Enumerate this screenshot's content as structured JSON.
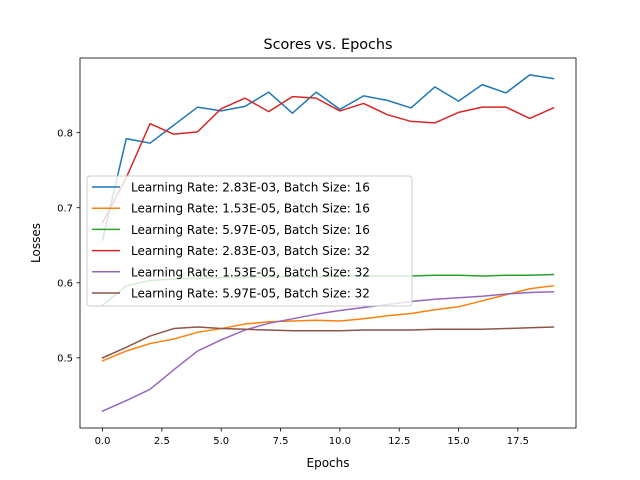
{
  "chart_data": {
    "type": "line",
    "title": "Scores vs. Epochs",
    "xlabel": "Epochs",
    "ylabel": "Losses",
    "xlim": [
      -0.95,
      19.95
    ],
    "ylim": [
      0.4065,
      0.8995
    ],
    "xticks": [
      0,
      2.5,
      5,
      7.5,
      10,
      12.5,
      15,
      17.5
    ],
    "xtick_labels": [
      "0.0",
      "2.5",
      "5.0",
      "7.5",
      "10.0",
      "12.5",
      "15.0",
      "17.5"
    ],
    "yticks": [
      0.5,
      0.6,
      0.7,
      0.8
    ],
    "ytick_labels": [
      "0.5",
      "0.6",
      "0.7",
      "0.8"
    ],
    "grid": false,
    "legend_position": "center-left",
    "x": [
      0,
      1,
      2,
      3,
      4,
      5,
      6,
      7,
      8,
      9,
      10,
      11,
      12,
      13,
      14,
      15,
      16,
      17,
      18,
      19
    ],
    "series": [
      {
        "name": "Learning Rate: 2.83E-03, Batch Size: 16",
        "color": "#1f77b4",
        "values": [
          0.657,
          0.792,
          0.786,
          0.81,
          0.834,
          0.829,
          0.835,
          0.854,
          0.826,
          0.854,
          0.831,
          0.849,
          0.843,
          0.833,
          0.861,
          0.842,
          0.864,
          0.853,
          0.877,
          0.872
        ]
      },
      {
        "name": "Learning Rate: 1.53E-05, Batch Size: 16",
        "color": "#ff7f0e",
        "values": [
          0.496,
          0.509,
          0.519,
          0.525,
          0.534,
          0.539,
          0.545,
          0.548,
          0.549,
          0.55,
          0.549,
          0.552,
          0.556,
          0.559,
          0.564,
          0.568,
          0.576,
          0.584,
          0.592,
          0.596
        ]
      },
      {
        "name": "Learning Rate: 5.97E-05, Batch Size: 16",
        "color": "#2ca02c",
        "values": [
          0.57,
          0.596,
          0.603,
          0.605,
          0.606,
          0.607,
          0.607,
          0.608,
          0.608,
          0.608,
          0.609,
          0.609,
          0.609,
          0.609,
          0.61,
          0.61,
          0.609,
          0.61,
          0.61,
          0.611
        ]
      },
      {
        "name": "Learning Rate: 2.83E-03, Batch Size: 32",
        "color": "#d62728",
        "values": [
          0.68,
          0.74,
          0.812,
          0.798,
          0.801,
          0.832,
          0.846,
          0.828,
          0.848,
          0.846,
          0.829,
          0.839,
          0.824,
          0.815,
          0.813,
          0.827,
          0.834,
          0.834,
          0.819,
          0.833
        ]
      },
      {
        "name": "Learning Rate: 1.53E-05, Batch Size: 32",
        "color": "#9467bd",
        "values": [
          0.429,
          0.443,
          0.458,
          0.484,
          0.509,
          0.524,
          0.537,
          0.546,
          0.552,
          0.558,
          0.563,
          0.567,
          0.571,
          0.575,
          0.578,
          0.58,
          0.582,
          0.585,
          0.587,
          0.588
        ]
      },
      {
        "name": "Learning Rate: 5.97E-05, Batch Size: 32",
        "color": "#8c564b",
        "values": [
          0.5,
          0.514,
          0.529,
          0.539,
          0.541,
          0.539,
          0.538,
          0.537,
          0.536,
          0.536,
          0.536,
          0.537,
          0.537,
          0.537,
          0.538,
          0.538,
          0.538,
          0.539,
          0.54,
          0.541
        ]
      }
    ]
  }
}
